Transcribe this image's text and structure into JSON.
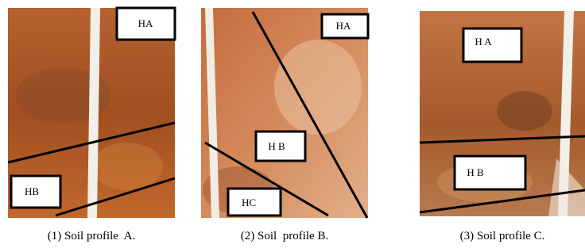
{
  "panels": [
    {
      "labels": [
        "HA",
        "HB"
      ],
      "caption": "(1) Soil profile  A."
    },
    {
      "labels": [
        "HA",
        "H B",
        "HC"
      ],
      "caption": "(2) Soil  profile B."
    },
    {
      "labels": [
        "H A",
        "H B"
      ],
      "caption": "(3) Soil profile C."
    }
  ]
}
